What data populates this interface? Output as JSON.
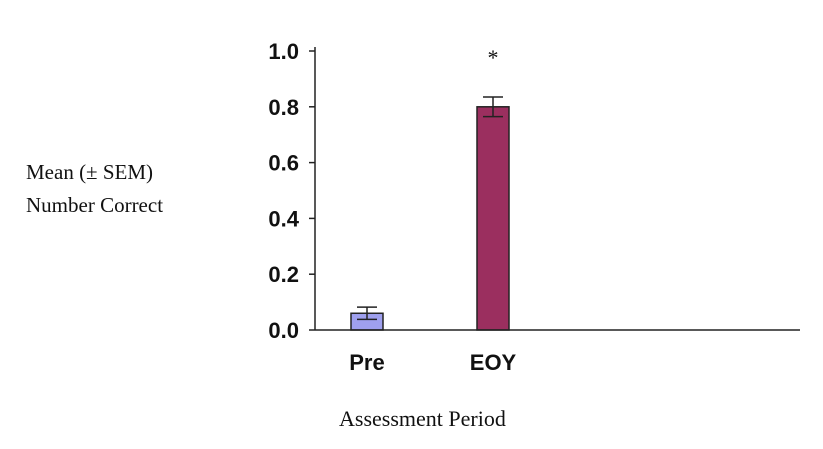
{
  "chart_data": {
    "type": "bar",
    "title": "",
    "ylabel_lines": [
      "Mean (± SEM)",
      "Number Correct"
    ],
    "xlabel": "Assessment Period",
    "categories": [
      "Pre",
      "EOY"
    ],
    "values": [
      0.06,
      0.8
    ],
    "errors": [
      0.022,
      0.035
    ],
    "bar_colors": [
      "#9fa0ee",
      "#9b2f5f"
    ],
    "significance": [
      "",
      "*"
    ],
    "ylim": [
      0,
      1.0
    ],
    "yticks": [
      0.0,
      0.2,
      0.4,
      0.6,
      0.8,
      1.0
    ],
    "ytick_labels": [
      "0.0",
      "0.2",
      "0.4",
      "0.6",
      "0.8",
      "1.0"
    ],
    "grid": false,
    "legend": "none"
  }
}
